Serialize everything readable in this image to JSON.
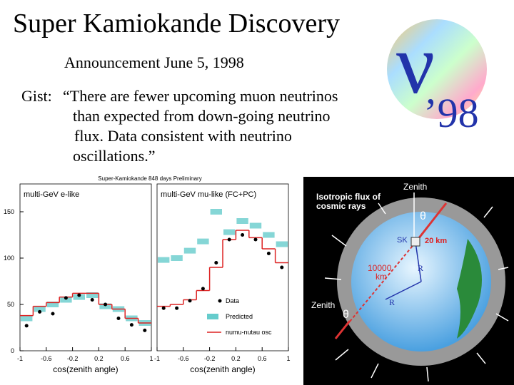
{
  "slide": {
    "title": "Super Kamiokande Discovery",
    "announcement": "Announcement June 5, 1998",
    "gist_label": "Gist:",
    "gist_lines": [
      "“There are fewer upcoming muon neutrinos",
      "than expected from down-going neutrino",
      "flux.  Data consistent with neutrino",
      "oscillations.”"
    ],
    "logo": {
      "symbol": "ν",
      "year": "’98"
    },
    "diagram": {
      "zenith_top": "Zenith",
      "flux_line1": "Isotropic flux of",
      "flux_line2": "cosmic rays",
      "theta_top": "θ",
      "sk": "SK",
      "depth": "20 km",
      "distance_line1": "10000",
      "distance_line2": "km",
      "radius_1": "R",
      "radius_2": "R",
      "zenith_bottom": "Zenith",
      "theta_bottom": "θ"
    }
  },
  "figure_title": "Super-Kamiokande 848 days Preliminary",
  "legend": {
    "data": "Data",
    "predicted": "Predicted",
    "osc": "numu-nutau osc"
  },
  "chart_data": [
    {
      "type": "histogram",
      "title": "multi-GeV e-like",
      "x_label": "cos(zenith angle)",
      "bins": [
        -1,
        -0.8,
        -0.6,
        -0.4,
        -0.2,
        0,
        0.2,
        0.4,
        0.6,
        0.8,
        1
      ],
      "xlim": [
        -1,
        1
      ],
      "xticks": [
        -1,
        -0.6,
        -0.2,
        0.2,
        0.6,
        1
      ],
      "ylim": [
        0,
        180
      ],
      "yticks": [
        0,
        50,
        100,
        150
      ],
      "series": [
        {
          "name": "Data",
          "color": "#000000",
          "values": [
            27,
            42,
            40,
            57,
            60,
            55,
            50,
            35,
            28,
            22
          ]
        },
        {
          "name": "Predicted",
          "color": "#66cccc",
          "values": [
            35,
            45,
            50,
            55,
            58,
            60,
            48,
            45,
            35,
            30
          ]
        },
        {
          "name": "numu-nutau osc",
          "color": "#dd2222",
          "values": [
            38,
            48,
            52,
            58,
            62,
            62,
            50,
            45,
            35,
            30
          ]
        }
      ]
    },
    {
      "type": "histogram",
      "title": "multi-GeV mu-like (FC+PC)",
      "x_label": "cos(zenith angle)",
      "bins": [
        -1,
        -0.8,
        -0.6,
        -0.4,
        -0.2,
        0,
        0.2,
        0.4,
        0.6,
        0.8,
        1
      ],
      "xlim": [
        -1,
        1
      ],
      "xticks": [
        -1,
        -0.6,
        -0.2,
        0.2,
        0.6,
        1
      ],
      "ylim": [
        0,
        180
      ],
      "series": [
        {
          "name": "Data",
          "color": "#000000",
          "values": [
            46,
            46,
            54,
            67,
            95,
            120,
            125,
            120,
            105,
            90
          ]
        },
        {
          "name": "Predicted",
          "color": "#66cccc",
          "values": [
            98,
            100,
            108,
            118,
            150,
            128,
            140,
            135,
            125,
            115
          ]
        },
        {
          "name": "numu-nutau osc",
          "color": "#dd2222",
          "values": [
            48,
            50,
            55,
            65,
            90,
            120,
            130,
            122,
            110,
            95
          ]
        }
      ]
    }
  ]
}
